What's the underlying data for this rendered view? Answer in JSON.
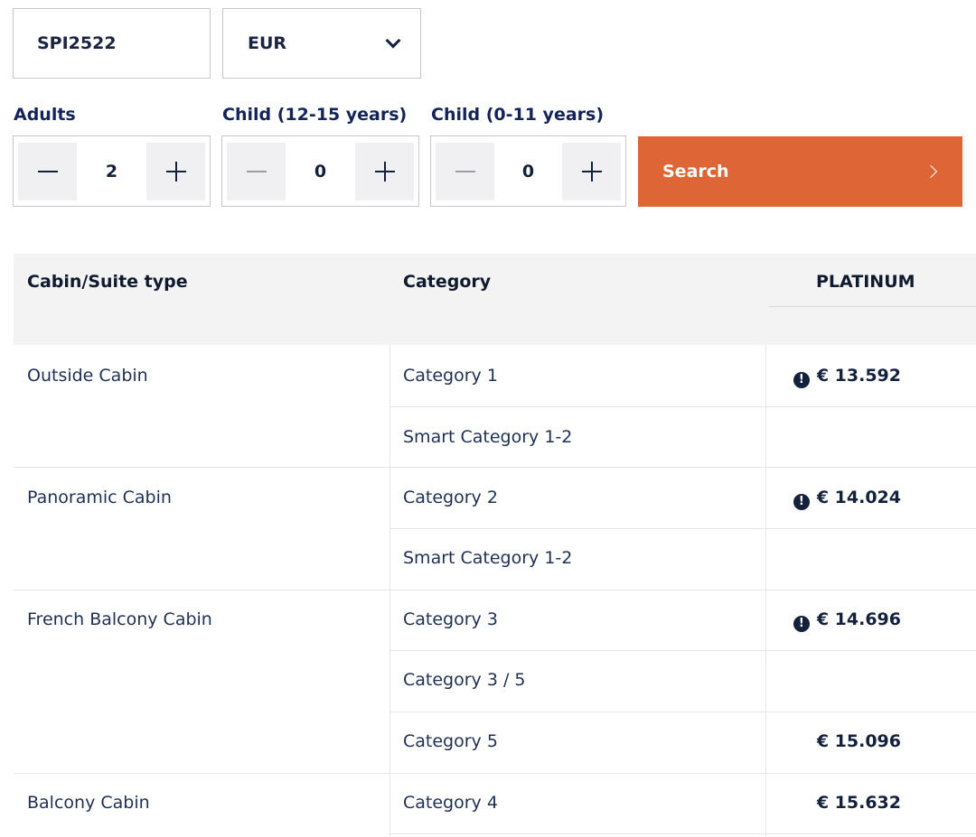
{
  "search": {
    "cruise_code": "SPI2522",
    "currency": "EUR",
    "adults_label": "Adults",
    "child_teen_label": "Child (12-15 years)",
    "child_young_label": "Child (0-11 years)",
    "adults_count": "2",
    "child_teen_count": "0",
    "child_young_count": "0",
    "search_label": "Search"
  },
  "table": {
    "headers": {
      "cabin_type": "Cabin/Suite type",
      "category": "Category",
      "platinum": "PLATINUM"
    },
    "rows": [
      {
        "cabin": "Outside Cabin",
        "category": "Category 1",
        "price": "€ 13.592",
        "alert": true
      },
      {
        "cabin": "",
        "category": "Smart Category 1-2",
        "price": "",
        "alert": false
      },
      {
        "cabin": "Panoramic Cabin",
        "category": "Category 2",
        "price": "€ 14.024",
        "alert": true
      },
      {
        "cabin": "",
        "category": "Smart Category 1-2",
        "price": "",
        "alert": false
      },
      {
        "cabin": "French Balcony Cabin",
        "category": "Category 3",
        "price": "€ 14.696",
        "alert": true
      },
      {
        "cabin": "",
        "category": "Category 3 / 5",
        "price": "",
        "alert": false
      },
      {
        "cabin": "",
        "category": "Category 5",
        "price": "€ 15.096",
        "alert": false
      },
      {
        "cabin": "Balcony Cabin",
        "category": "Category 4",
        "price": "€ 15.632",
        "alert": false
      }
    ]
  },
  "icons": {
    "currency_dropdown": "chevron-down-icon",
    "decrement": "minus-icon",
    "increment": "plus-icon",
    "search": "chevron-right-icon",
    "price_alert": "alert-circle-icon"
  },
  "colors": {
    "accent": "#de6536",
    "text_dark": "#14213d",
    "header_bg": "#f3f3f4"
  }
}
